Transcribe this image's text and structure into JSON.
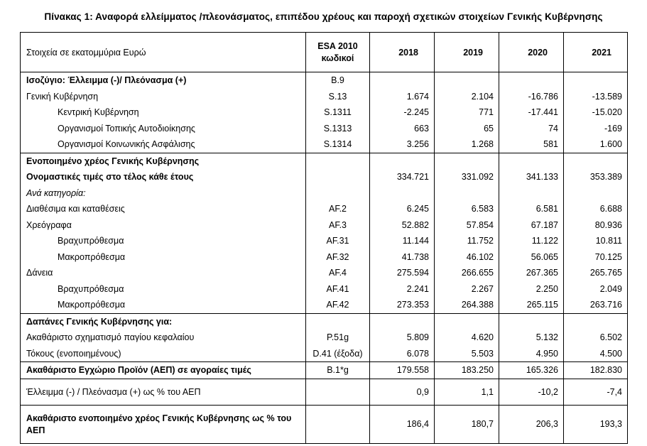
{
  "title": "Πίνακας 1: Αναφορά ελλείμματος /πλεονάσματος, επιπέδου χρέους και παροχή σχετικών στοιχείων Γενικής Κυβέρνησης",
  "table": {
    "header": {
      "label_column": "Στοιχεία σε εκατομμύρια Ευρώ",
      "esa_line1": "ESA 2010",
      "esa_line2": "κωδικοί",
      "years": [
        "2018",
        "2019",
        "2020",
        "2021"
      ]
    },
    "rows": [
      {
        "label": "Ισοζύγιο: Έλλειμμα (-)/ Πλεόνασμα (+)",
        "code": "B.9",
        "values": [
          "",
          "",
          "",
          ""
        ],
        "bold": true
      },
      {
        "label": "Γενική Κυβέρνηση",
        "code": "S.13",
        "values": [
          "1.674",
          "2.104",
          "-16.786",
          "-13.589"
        ]
      },
      {
        "label": "Κεντρική Κυβέρνηση",
        "code": "S.1311",
        "values": [
          "-2.245",
          "771",
          "-17.441",
          "-15.020"
        ],
        "indent": 1
      },
      {
        "label": "Οργανισμοί Τοπικής Αυτοδιοίκησης",
        "code": "S.1313",
        "values": [
          "663",
          "65",
          "74",
          "-169"
        ],
        "indent": 1
      },
      {
        "label": "Οργανισμοί Κοινωνικής Ασφάλισης",
        "code": "S.1314",
        "values": [
          "3.256",
          "1.268",
          "581",
          "1.600"
        ],
        "indent": 1
      },
      {
        "label": "Ενοποιημένο χρέος Γενικής Κυβέρνησης",
        "code": "",
        "values": [
          "",
          "",
          "",
          ""
        ],
        "bold": true,
        "section_top": true
      },
      {
        "label": "Ονομαστικές τιμές στο τέλος κάθε έτους",
        "code": "",
        "values": [
          "334.721",
          "331.092",
          "341.133",
          "353.389"
        ],
        "bold": true
      },
      {
        "label": "Ανά κατηγορία:",
        "code": "",
        "values": [
          "",
          "",
          "",
          ""
        ],
        "italic": true
      },
      {
        "label": "Διαθέσιμα και καταθέσεις",
        "code": "AF.2",
        "values": [
          "6.245",
          "6.583",
          "6.581",
          "6.688"
        ]
      },
      {
        "label": "Χρεόγραφα",
        "code": "AF.3",
        "values": [
          "52.882",
          "57.854",
          "67.187",
          "80.936"
        ]
      },
      {
        "label": "Βραχυπρόθεσμα",
        "code": "AF.31",
        "values": [
          "11.144",
          "11.752",
          "11.122",
          "10.811"
        ],
        "indent": 1
      },
      {
        "label": "Μακροπρόθεσμα",
        "code": "AF.32",
        "values": [
          "41.738",
          "46.102",
          "56.065",
          "70.125"
        ],
        "indent": 1
      },
      {
        "label": "Δάνεια",
        "code": "AF.4",
        "values": [
          "275.594",
          "266.655",
          "267.365",
          "265.765"
        ]
      },
      {
        "label": "Βραχυπρόθεσμα",
        "code": "AF.41",
        "values": [
          "2.241",
          "2.267",
          "2.250",
          "2.049"
        ],
        "indent": 1
      },
      {
        "label": "Μακροπρόθεσμα",
        "code": "AF.42",
        "values": [
          "273.353",
          "264.388",
          "265.115",
          "263.716"
        ],
        "indent": 1
      },
      {
        "label": "Δαπάνες Γενικής Κυβέρνησης για:",
        "code": "",
        "values": [
          "",
          "",
          "",
          ""
        ],
        "bold": true,
        "section_top": true
      },
      {
        "label": "Ακαθάριστο σχηματισμό παγίου κεφαλαίου",
        "code": "P.51g",
        "values": [
          "5.809",
          "4.620",
          "5.132",
          "6.502"
        ]
      },
      {
        "label": "Τόκους (ενοποιημένους)",
        "code": "D.41 (έξοδα)",
        "values": [
          "6.078",
          "5.503",
          "4.950",
          "4.500"
        ]
      },
      {
        "label": "Ακαθάριστο Εγχώριο Προϊόν (ΑΕΠ) σε αγοραίες τιμές",
        "code": "B.1*g",
        "values": [
          "179.558",
          "183.250",
          "165.326",
          "182.830"
        ],
        "bold": true,
        "section_top": true
      },
      {
        "label": "Έλλειμμα (-) / Πλεόνασμα (+) ως % του ΑΕΠ",
        "code": "",
        "values": [
          "0,9",
          "1,1",
          "-10,2",
          "-7,4"
        ],
        "section_top": true,
        "tall": true
      },
      {
        "label": "Ακαθάριστο ενοποιημένο χρέος Γενικής Κυβέρνησης ως % του ΑΕΠ",
        "code": "",
        "values": [
          "186,4",
          "180,7",
          "206,3",
          "193,3"
        ],
        "bold": true,
        "section_top": true,
        "tall": true
      }
    ]
  }
}
